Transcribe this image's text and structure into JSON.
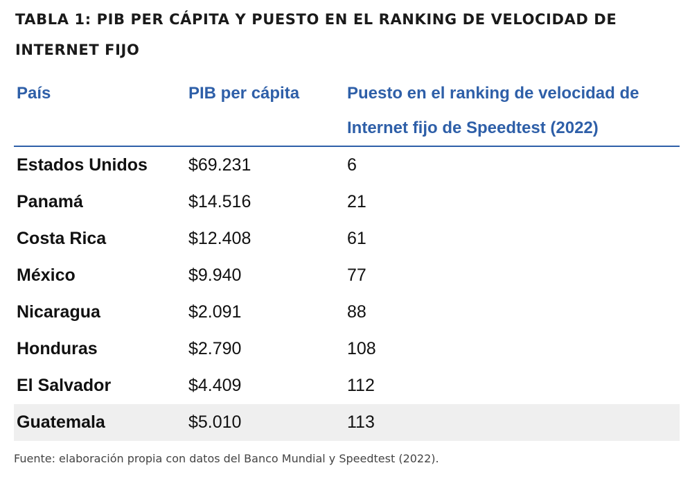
{
  "title": "TABLA 1: PIB PER CÁPITA Y PUESTO EN EL RANKING DE VELOCIDAD DE INTERNET FIJO",
  "table": {
    "headers": [
      "País",
      "PIB per cápita",
      "Puesto en el ranking de velocidad de Internet fijo de Speedtest (2022)"
    ],
    "rows": [
      {
        "country": "Estados Unidos",
        "gdp": "$69.231",
        "rank": "6"
      },
      {
        "country": "Panamá",
        "gdp": "$14.516",
        "rank": "21"
      },
      {
        "country": "Costa Rica",
        "gdp": "$12.408",
        "rank": "61"
      },
      {
        "country": "México",
        "gdp": "$9.940",
        "rank": "77"
      },
      {
        "country": "Nicaragua",
        "gdp": "$2.091",
        "rank": "88"
      },
      {
        "country": "Honduras",
        "gdp": "$2.790",
        "rank": "108"
      },
      {
        "country": "El Salvador",
        "gdp": "$4.409",
        "rank": "112"
      },
      {
        "country": "Guatemala",
        "gdp": "$5.010",
        "rank": "113"
      }
    ]
  },
  "source": "Fuente: elaboración propia con datos del Banco Mundial y Speedtest (2022).",
  "colors": {
    "header_text": "#2e5fa8",
    "header_rule": "#2e5fa8",
    "highlight_row": "#efefef"
  }
}
